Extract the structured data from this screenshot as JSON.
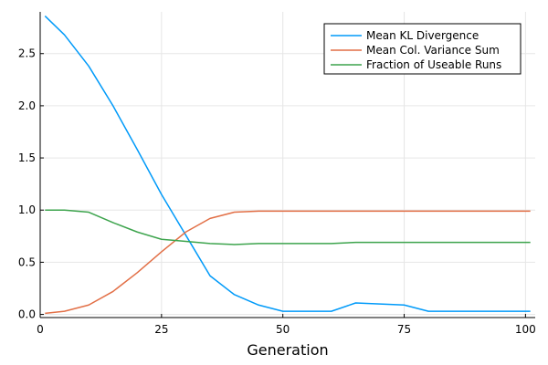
{
  "chart_data": {
    "type": "line",
    "xlabel": "Generation",
    "ylabel": "",
    "xlim": [
      0,
      102
    ],
    "ylim": [
      -0.03,
      2.9
    ],
    "xticks": [
      0,
      25,
      50,
      75,
      100
    ],
    "xtick_labels": [
      "0",
      "25",
      "50",
      "75",
      "100"
    ],
    "yticks": [
      0.0,
      0.5,
      1.0,
      1.5,
      2.0,
      2.5
    ],
    "ytick_labels": [
      "0.0",
      "0.5",
      "1.0",
      "1.5",
      "2.0",
      "2.5"
    ],
    "grid": true,
    "legend_position": "top-right",
    "x": [
      1,
      5,
      10,
      15,
      20,
      25,
      30,
      35,
      40,
      45,
      50,
      55,
      60,
      65,
      70,
      75,
      80,
      85,
      90,
      95,
      101
    ],
    "series": [
      {
        "name": "Mean KL Divergence",
        "color": "#009af9",
        "values": [
          2.86,
          2.68,
          2.38,
          2.0,
          1.58,
          1.15,
          0.76,
          0.37,
          0.19,
          0.09,
          0.03,
          0.03,
          0.03,
          0.11,
          0.1,
          0.09,
          0.03,
          0.03,
          0.03,
          0.03,
          0.03
        ]
      },
      {
        "name": "Mean Col. Variance Sum",
        "color": "#e26f46",
        "values": [
          0.01,
          0.03,
          0.09,
          0.22,
          0.4,
          0.6,
          0.79,
          0.92,
          0.98,
          0.99,
          0.99,
          0.99,
          0.99,
          0.99,
          0.99,
          0.99,
          0.99,
          0.99,
          0.99,
          0.99,
          0.99
        ]
      },
      {
        "name": "Fraction of Useable Runs",
        "color": "#3da44d",
        "values": [
          1.0,
          1.0,
          0.98,
          0.88,
          0.79,
          0.72,
          0.7,
          0.68,
          0.67,
          0.68,
          0.68,
          0.68,
          0.68,
          0.69,
          0.69,
          0.69,
          0.69,
          0.69,
          0.69,
          0.69,
          0.69
        ]
      }
    ]
  }
}
